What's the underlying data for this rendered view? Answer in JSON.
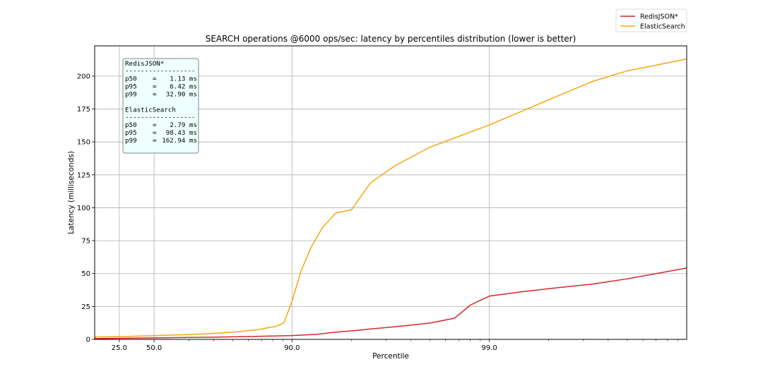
{
  "chart_data": {
    "type": "line",
    "title": "SEARCH operations @6000 ops/sec: latency by percentiles distribution (lower is better)",
    "xlabel": "Percentile",
    "ylabel": "Latency (milliseconds)",
    "x_scale": "inverse-percentile-log",
    "x_ticks": [
      "25.0",
      "50.0",
      "90.0",
      "99.0"
    ],
    "x_tick_values": [
      25,
      50,
      90,
      99
    ],
    "xlim": [
      0,
      99.9
    ],
    "ylim": [
      0,
      223
    ],
    "y_ticks": [
      0,
      25,
      50,
      75,
      100,
      125,
      150,
      175,
      200
    ],
    "grid": true,
    "legend_position": "top-right",
    "series": [
      {
        "name": "RedisJSON*",
        "color": "#d62728",
        "points": [
          [
            0,
            0.6
          ],
          [
            25,
            0.8
          ],
          [
            50,
            1.13
          ],
          [
            75,
            1.7
          ],
          [
            85,
            2.3
          ],
          [
            90,
            2.9
          ],
          [
            92.5,
            3.8
          ],
          [
            94,
            5.5
          ],
          [
            95,
            6.42
          ],
          [
            96,
            7.9
          ],
          [
            97,
            9.6
          ],
          [
            98,
            12.4
          ],
          [
            98.5,
            16.1
          ],
          [
            98.75,
            26
          ],
          [
            98.9,
            30
          ],
          [
            99,
            32.9
          ],
          [
            99.3,
            36
          ],
          [
            99.5,
            38.5
          ],
          [
            99.7,
            42
          ],
          [
            99.8,
            46
          ],
          [
            99.9,
            54.2
          ]
        ]
      },
      {
        "name": "ElasticSearch",
        "color": "#f5a60f",
        "points": [
          [
            0,
            1.8
          ],
          [
            25,
            2.1
          ],
          [
            50,
            2.79
          ],
          [
            70,
            3.9
          ],
          [
            80,
            5.4
          ],
          [
            85,
            7.3
          ],
          [
            88,
            10
          ],
          [
            89,
            12.5
          ],
          [
            90,
            29
          ],
          [
            91,
            52
          ],
          [
            92,
            70
          ],
          [
            93,
            85
          ],
          [
            94,
            96
          ],
          [
            95,
            98.43
          ],
          [
            96,
            119
          ],
          [
            97,
            132
          ],
          [
            98,
            146
          ],
          [
            99,
            162.94
          ],
          [
            99.5,
            182
          ],
          [
            99.7,
            196
          ],
          [
            99.8,
            204
          ],
          [
            99.9,
            213
          ]
        ]
      }
    ],
    "annotation": {
      "sections": [
        {
          "name": "RedisJSON*",
          "divider": "------------------",
          "rows": [
            {
              "label": "p50",
              "value": "1.13 ms"
            },
            {
              "label": "p95",
              "value": "6.42 ms"
            },
            {
              "label": "p99",
              "value": "32.90 ms"
            }
          ]
        },
        {
          "name": "ElasticSearch",
          "divider": "------------------",
          "rows": [
            {
              "label": "p50",
              "value": "2.79 ms"
            },
            {
              "label": "p95",
              "value": "98.43 ms"
            },
            {
              "label": "p99",
              "value": "162.94 ms"
            }
          ]
        }
      ]
    }
  }
}
